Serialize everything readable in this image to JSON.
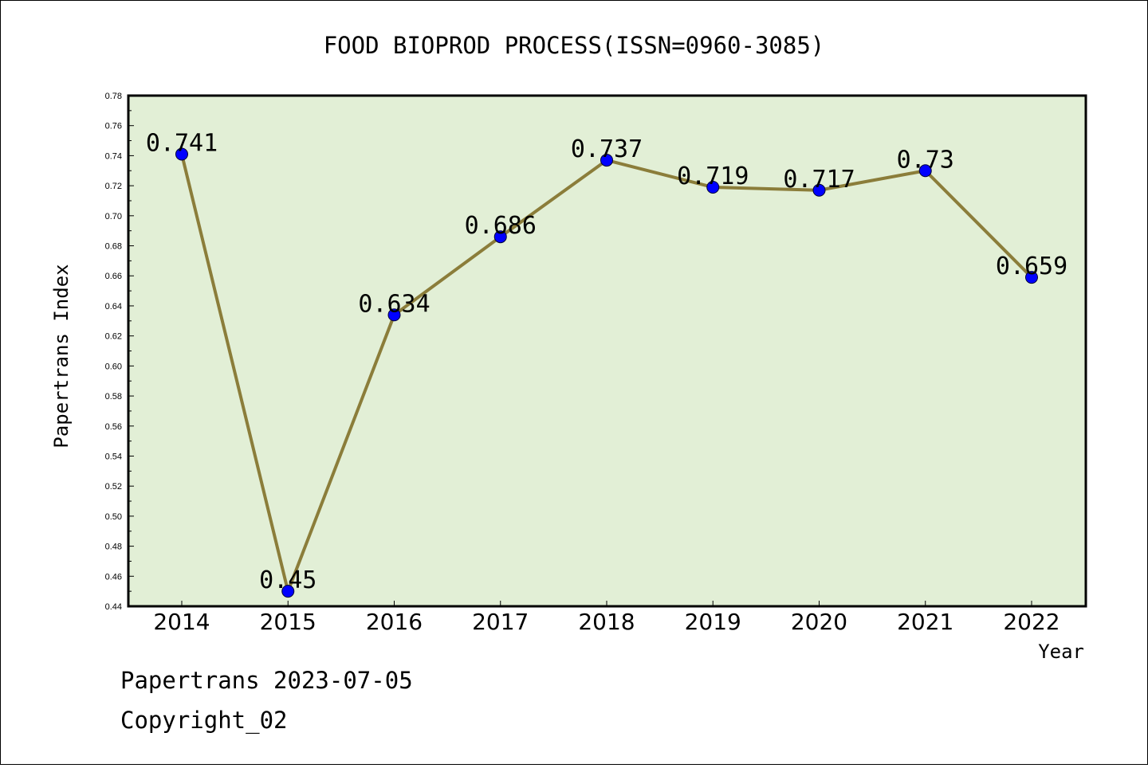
{
  "chart_data": {
    "type": "line",
    "title": "FOOD BIOPROD PROCESS(ISSN=0960-3085)",
    "xlabel": "Year",
    "ylabel": "Papertrans Index",
    "categories": [
      "2014",
      "2015",
      "2016",
      "2017",
      "2018",
      "2019",
      "2020",
      "2021",
      "2022"
    ],
    "series": [
      {
        "values": [
          0.741,
          0.45,
          0.634,
          0.686,
          0.737,
          0.719,
          0.717,
          0.73,
          0.659
        ]
      }
    ],
    "data_labels": [
      "0.741",
      "0.45",
      "0.634",
      "0.686",
      "0.737",
      "0.719",
      "0.717",
      "0.73",
      "0.659"
    ],
    "ylim": [
      0.44,
      0.78
    ],
    "yticks": [
      "0.44",
      "0.46",
      "0.48",
      "0.50",
      "0.52",
      "0.54",
      "0.56",
      "0.58",
      "0.60",
      "0.62",
      "0.64",
      "0.66",
      "0.68",
      "0.70",
      "0.72",
      "0.74",
      "0.76",
      "0.78"
    ],
    "grid": false,
    "colors": {
      "plot_background": "#e2efd6",
      "line": "#8b7d3a",
      "marker": "#0000ff"
    }
  },
  "footer": {
    "line1": "Papertrans 2023-07-05",
    "line2": "Copyright_02"
  }
}
